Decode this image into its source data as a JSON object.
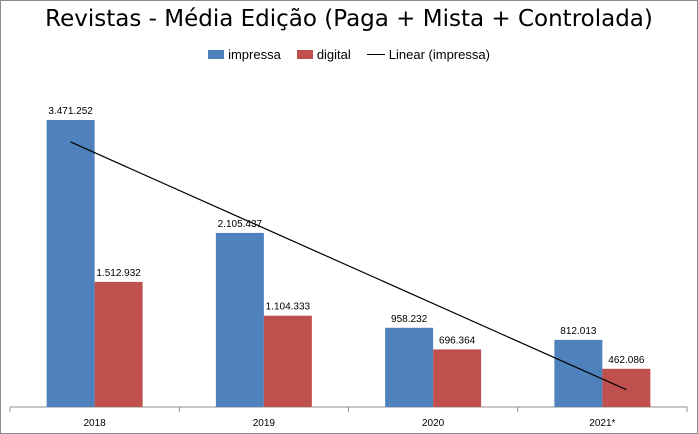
{
  "colors": {
    "impressa": "#4f81bd",
    "digital": "#c0504d",
    "trend": "#000000"
  },
  "chart_data": {
    "type": "bar",
    "title": "Revistas - Média Edição (Paga + Mista + Controlada)",
    "categories": [
      "2018",
      "2019",
      "2020",
      "2021*"
    ],
    "series": [
      {
        "name": "impressa",
        "values": [
          3471252,
          2105437,
          958232,
          812013
        ],
        "labels": [
          "3.471.252",
          "2.105.437",
          "958.232",
          "812.013"
        ]
      },
      {
        "name": "digital",
        "values": [
          1512932,
          1104333,
          696364,
          462086
        ],
        "labels": [
          "1.512.932",
          "1.104.333",
          "696.364",
          "462.086"
        ]
      }
    ],
    "trendline": {
      "name": "Linear (impressa)",
      "series": "impressa",
      "type": "linear"
    },
    "ylim": [
      0,
      3700000
    ],
    "legend": "top",
    "grid": false
  }
}
